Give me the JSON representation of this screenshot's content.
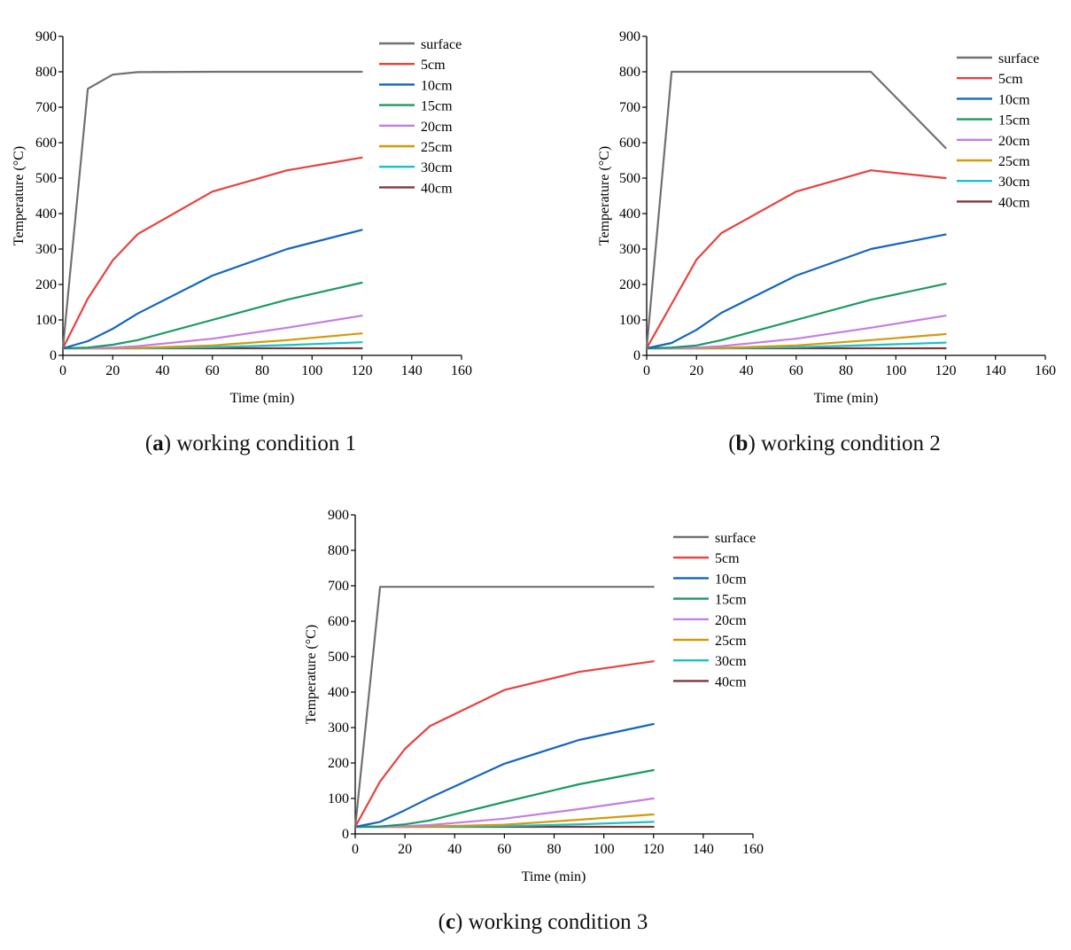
{
  "chart_data": [
    {
      "id": "a",
      "type": "line",
      "caption": {
        "letter": "a",
        "text": " working condition 1"
      },
      "xlabel": "Time (min)",
      "ylabel": "Temperature (°C)",
      "xlim": [
        0,
        160
      ],
      "ylim": [
        0,
        900
      ],
      "xticks": [
        0,
        20,
        40,
        60,
        80,
        100,
        120,
        140,
        160
      ],
      "yticks": [
        0,
        100,
        200,
        300,
        400,
        500,
        600,
        700,
        800,
        900
      ],
      "x": [
        0,
        10,
        20,
        30,
        60,
        90,
        120
      ],
      "series": [
        {
          "name": "surface",
          "color": "#707070",
          "values": [
            20,
            752,
            792,
            799,
            800,
            800,
            800
          ]
        },
        {
          "name": "5cm",
          "color": "#e8413e",
          "values": [
            20,
            160,
            268,
            342,
            462,
            522,
            558
          ]
        },
        {
          "name": "10cm",
          "color": "#1565c0",
          "values": [
            20,
            40,
            75,
            118,
            225,
            300,
            354
          ]
        },
        {
          "name": "15cm",
          "color": "#1a9a62",
          "values": [
            20,
            22,
            30,
            43,
            100,
            157,
            205
          ]
        },
        {
          "name": "20cm",
          "color": "#c47fe0",
          "values": [
            20,
            20,
            22,
            26,
            47,
            78,
            112
          ]
        },
        {
          "name": "25cm",
          "color": "#d49a0a",
          "values": [
            20,
            20,
            20,
            21,
            28,
            43,
            62
          ]
        },
        {
          "name": "30cm",
          "color": "#17c2c9",
          "values": [
            20,
            20,
            20,
            20,
            23,
            29,
            37
          ]
        },
        {
          "name": "40cm",
          "color": "#7a3a3a",
          "values": [
            20,
            20,
            20,
            20,
            20,
            20,
            20
          ]
        }
      ]
    },
    {
      "id": "b",
      "type": "line",
      "caption": {
        "letter": "b",
        "text": " working condition 2"
      },
      "xlabel": "Time (min)",
      "ylabel": "Temperature (°C)",
      "xlim": [
        0,
        160
      ],
      "ylim": [
        0,
        900
      ],
      "xticks": [
        0,
        20,
        40,
        60,
        80,
        100,
        120,
        140,
        160
      ],
      "yticks": [
        0,
        100,
        200,
        300,
        400,
        500,
        600,
        700,
        800,
        900
      ],
      "x": [
        0,
        10,
        20,
        30,
        60,
        90,
        120
      ],
      "series": [
        {
          "name": "surface",
          "color": "#707070",
          "values": [
            20,
            800,
            800,
            800,
            800,
            800,
            585
          ]
        },
        {
          "name": "5cm",
          "color": "#e8413e",
          "values": [
            20,
            145,
            270,
            345,
            462,
            522,
            500
          ]
        },
        {
          "name": "10cm",
          "color": "#1565c0",
          "values": [
            20,
            35,
            72,
            120,
            225,
            300,
            341
          ]
        },
        {
          "name": "15cm",
          "color": "#1a9a62",
          "values": [
            20,
            22,
            28,
            43,
            100,
            157,
            202
          ]
        },
        {
          "name": "20cm",
          "color": "#c47fe0",
          "values": [
            20,
            20,
            22,
            26,
            47,
            78,
            112
          ]
        },
        {
          "name": "25cm",
          "color": "#d49a0a",
          "values": [
            20,
            20,
            20,
            21,
            28,
            43,
            60
          ]
        },
        {
          "name": "30cm",
          "color": "#17c2c9",
          "values": [
            20,
            20,
            20,
            20,
            23,
            29,
            36
          ]
        },
        {
          "name": "40cm",
          "color": "#7a3a3a",
          "values": [
            20,
            20,
            20,
            20,
            20,
            20,
            20
          ]
        }
      ]
    },
    {
      "id": "c",
      "type": "line",
      "caption": {
        "letter": "c",
        "text": " working condition 3"
      },
      "xlabel": "Time (min)",
      "ylabel": "Temperature (°C)",
      "xlim": [
        0,
        160
      ],
      "ylim": [
        0,
        900
      ],
      "xticks": [
        0,
        20,
        40,
        60,
        80,
        100,
        120,
        140,
        160
      ],
      "yticks": [
        0,
        100,
        200,
        300,
        400,
        500,
        600,
        700,
        800,
        900
      ],
      "x": [
        0,
        10,
        20,
        30,
        60,
        90,
        120
      ],
      "series": [
        {
          "name": "surface",
          "color": "#707070",
          "values": [
            20,
            697,
            697,
            697,
            697,
            697,
            697
          ]
        },
        {
          "name": "5cm",
          "color": "#e8413e",
          "values": [
            20,
            148,
            240,
            304,
            406,
            457,
            487
          ]
        },
        {
          "name": "10cm",
          "color": "#1565c0",
          "values": [
            20,
            34,
            67,
            102,
            198,
            265,
            310
          ]
        },
        {
          "name": "15cm",
          "color": "#1a9a62",
          "values": [
            20,
            21,
            27,
            38,
            90,
            140,
            180
          ]
        },
        {
          "name": "20cm",
          "color": "#c47fe0",
          "values": [
            20,
            20,
            22,
            25,
            43,
            70,
            100
          ]
        },
        {
          "name": "25cm",
          "color": "#d49a0a",
          "values": [
            20,
            20,
            20,
            21,
            26,
            40,
            55
          ]
        },
        {
          "name": "30cm",
          "color": "#17c2c9",
          "values": [
            20,
            20,
            20,
            20,
            22,
            27,
            34
          ]
        },
        {
          "name": "40cm",
          "color": "#7a3a3a",
          "values": [
            20,
            20,
            20,
            20,
            20,
            20,
            20
          ]
        }
      ]
    }
  ]
}
